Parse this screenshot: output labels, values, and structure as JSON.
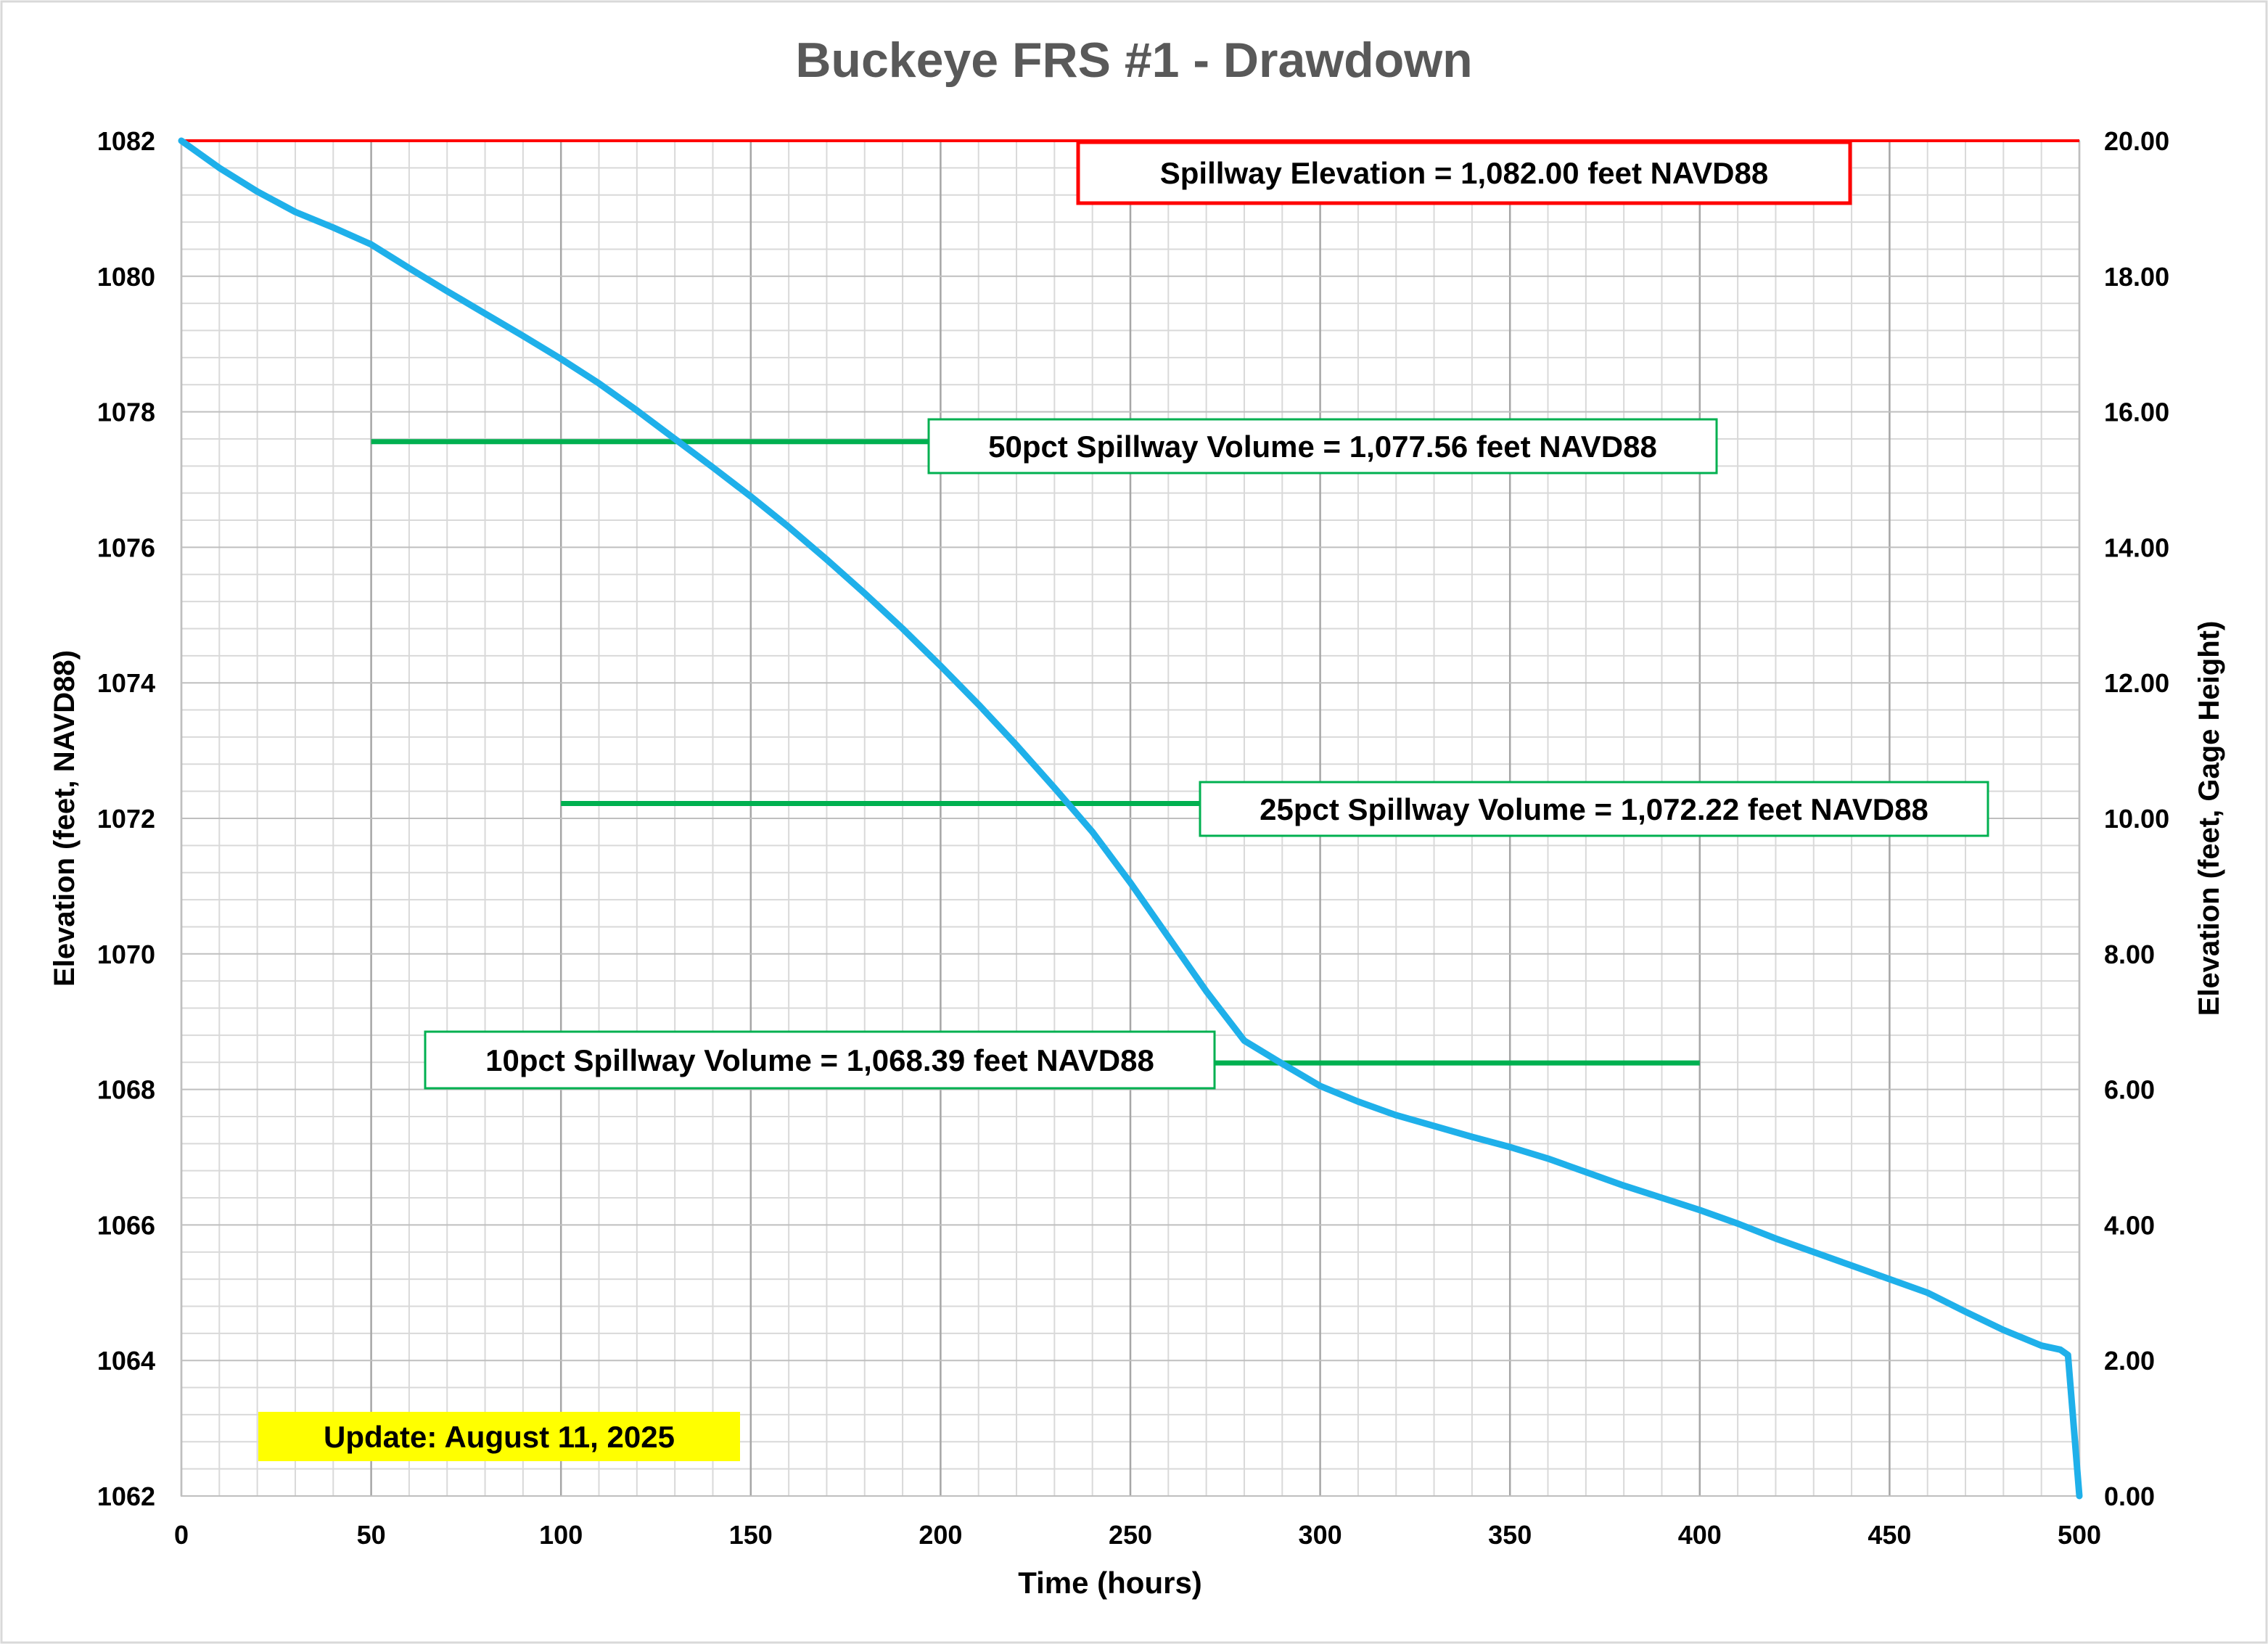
{
  "chart_data": {
    "type": "line",
    "title": "Buckeye FRS #1 - Drawdown",
    "xlabel": "Time (hours)",
    "ylabel": "Elevation (feet, NAVD88)",
    "y2label": "Elevation (feet, Gage Height)",
    "xlim": [
      0,
      500
    ],
    "ylim": [
      1062,
      1082
    ],
    "y2lim": [
      0,
      20
    ],
    "xticks": [
      "0",
      "50",
      "100",
      "150",
      "200",
      "250",
      "300",
      "350",
      "400",
      "450",
      "500"
    ],
    "yticks": [
      "1062",
      "1064",
      "1066",
      "1068",
      "1070",
      "1072",
      "1074",
      "1076",
      "1078",
      "1080",
      "1082"
    ],
    "y2ticks": [
      "0.00",
      "2.00",
      "4.00",
      "6.00",
      "8.00",
      "10.00",
      "12.00",
      "14.00",
      "16.00",
      "18.00",
      "20.00"
    ],
    "grid": true,
    "series": [
      {
        "color": "#1fb0ea",
        "x": [
          0,
          10,
          20,
          30,
          40,
          50,
          60,
          70,
          80,
          90,
          100,
          110,
          120,
          130,
          140,
          150,
          160,
          170,
          180,
          190,
          200,
          210,
          220,
          230,
          240,
          250,
          260,
          270,
          280,
          290,
          300,
          310,
          320,
          330,
          340,
          350,
          360,
          370,
          380,
          390,
          400,
          410,
          420,
          430,
          440,
          450,
          460,
          470,
          480,
          490,
          495,
          497,
          500
        ],
        "y": [
          1082.0,
          1081.6,
          1081.25,
          1080.95,
          1080.72,
          1080.47,
          1080.12,
          1079.78,
          1079.45,
          1079.12,
          1078.78,
          1078.42,
          1078.02,
          1077.6,
          1077.18,
          1076.75,
          1076.3,
          1075.82,
          1075.32,
          1074.8,
          1074.25,
          1073.68,
          1073.08,
          1072.45,
          1071.8,
          1071.05,
          1070.25,
          1069.45,
          1068.72,
          1068.38,
          1068.05,
          1067.82,
          1067.62,
          1067.46,
          1067.3,
          1067.15,
          1066.98,
          1066.78,
          1066.58,
          1066.4,
          1066.22,
          1066.02,
          1065.8,
          1065.6,
          1065.4,
          1065.2,
          1065.0,
          1064.72,
          1064.45,
          1064.22,
          1064.16,
          1064.08,
          1062.0
        ]
      }
    ],
    "reference_lines": [
      {
        "label": "Spillway Elevation = 1,082.00 feet NAVD88",
        "y": 1082.0,
        "x": [
          0,
          500
        ],
        "color": "#ff0000"
      },
      {
        "label": "50pct Spillway Volume = 1,077.56 feet NAVD88",
        "y": 1077.56,
        "x": [
          50,
          200
        ],
        "color": "#00b050"
      },
      {
        "label": "25pct Spillway Volume = 1,072.22 feet NAVD88",
        "y": 1072.22,
        "x": [
          100,
          270
        ],
        "color": "#00b050"
      },
      {
        "label": "10pct Spillway Volume = 1,068.39 feet NAVD88",
        "y": 1068.39,
        "x": [
          270,
          400
        ],
        "color": "#00b050"
      }
    ],
    "annotations": [
      {
        "text": "Update: August 11, 2025",
        "background": "#ffff00"
      }
    ]
  }
}
